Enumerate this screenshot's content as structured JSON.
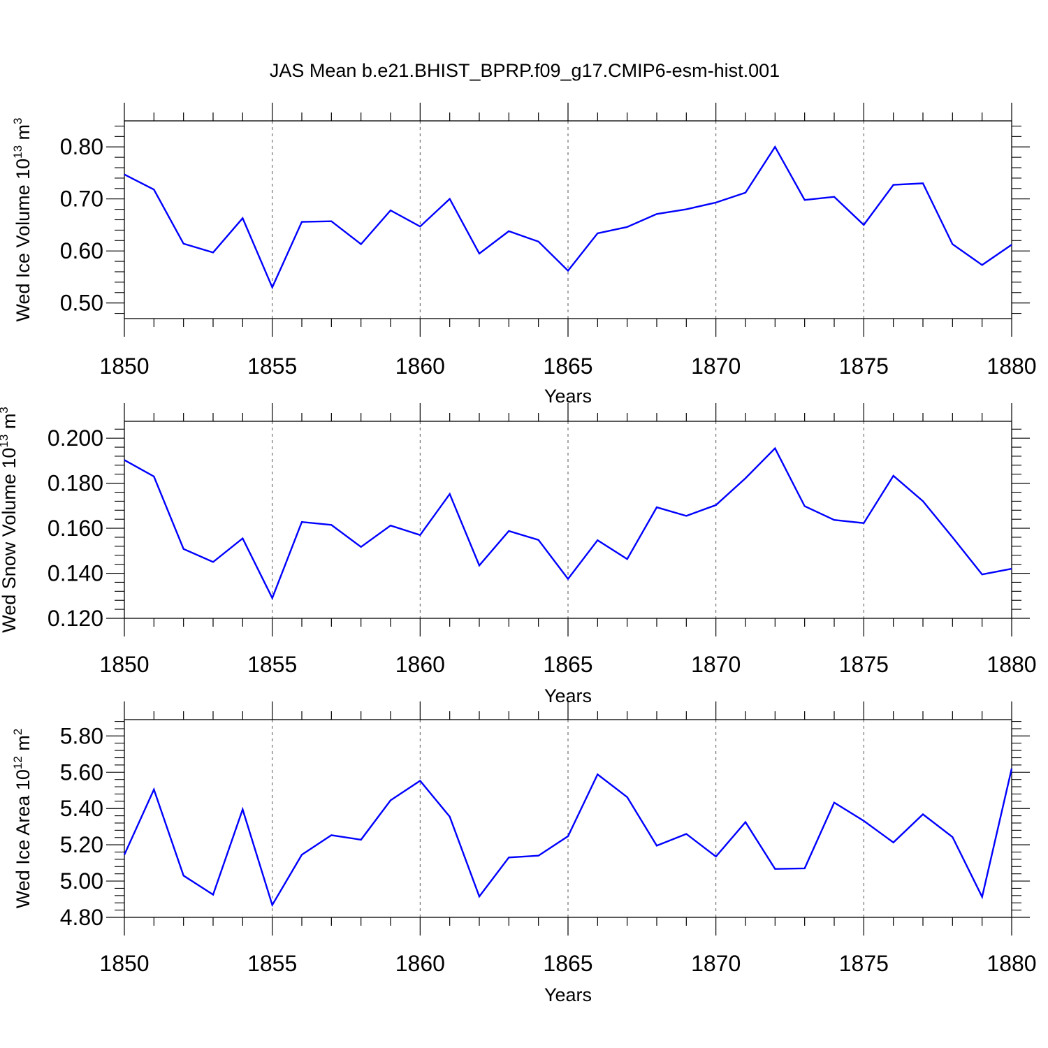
{
  "colors": {
    "series": "#0000ff",
    "axes": "#000000",
    "grid": "#555555",
    "background": "#ffffff"
  },
  "chart_data": [
    {
      "type": "line",
      "title": "JAS Mean b.e21.BHIST_BPRP.f09_g17.CMIP6-esm-hist.001",
      "xlabel": "Years",
      "ylabel_text": "Wed Ice Volume 10",
      "ylabel_exp": "13",
      "ylabel_unit": " m",
      "ylabel_unit_exp": "3",
      "xlim": [
        1850,
        1880
      ],
      "ylim": [
        0.47,
        0.85
      ],
      "x_ticks": [
        1850,
        1855,
        1860,
        1865,
        1870,
        1875,
        1880
      ],
      "x_tick_labels": [
        "1850",
        "1855",
        "1860",
        "1865",
        "1870",
        "1875",
        "1880"
      ],
      "y_ticks": [
        0.5,
        0.6,
        0.7,
        0.8
      ],
      "y_tick_labels": [
        "0.50",
        "0.60",
        "0.70",
        "0.80"
      ],
      "y_minor_step": 0.02,
      "x": [
        1850,
        1851,
        1852,
        1853,
        1854,
        1855,
        1856,
        1857,
        1858,
        1859,
        1860,
        1861,
        1862,
        1863,
        1864,
        1865,
        1866,
        1867,
        1868,
        1869,
        1870,
        1871,
        1872,
        1873,
        1874,
        1875,
        1876,
        1877,
        1878,
        1879,
        1880
      ],
      "values": [
        0.747,
        0.718,
        0.614,
        0.597,
        0.663,
        0.53,
        0.656,
        0.657,
        0.613,
        0.678,
        0.647,
        0.7,
        0.595,
        0.638,
        0.618,
        0.562,
        0.634,
        0.646,
        0.671,
        0.68,
        0.693,
        0.712,
        0.8,
        0.698,
        0.704,
        0.65,
        0.727,
        0.73,
        0.613,
        0.573,
        0.612
      ],
      "grid": "vertical dashed at major x ticks"
    },
    {
      "type": "line",
      "xlabel": "Years",
      "ylabel_text": "Wed Snow Volume 10",
      "ylabel_exp": "13",
      "ylabel_unit": " m",
      "ylabel_unit_exp": "3",
      "xlim": [
        1850,
        1880
      ],
      "ylim": [
        0.12,
        0.2075
      ],
      "x_ticks": [
        1850,
        1855,
        1860,
        1865,
        1870,
        1875,
        1880
      ],
      "x_tick_labels": [
        "1850",
        "1855",
        "1860",
        "1865",
        "1870",
        "1875",
        "1880"
      ],
      "y_ticks": [
        0.12,
        0.14,
        0.16,
        0.18,
        0.2
      ],
      "y_tick_labels": [
        "0.120",
        "0.140",
        "0.160",
        "0.180",
        "0.200"
      ],
      "y_minor_step": 0.004,
      "x": [
        1850,
        1851,
        1852,
        1853,
        1854,
        1855,
        1856,
        1857,
        1858,
        1859,
        1860,
        1861,
        1862,
        1863,
        1864,
        1865,
        1866,
        1867,
        1868,
        1869,
        1870,
        1871,
        1872,
        1873,
        1874,
        1875,
        1876,
        1877,
        1878,
        1879,
        1880
      ],
      "values": [
        0.1903,
        0.183,
        0.1508,
        0.145,
        0.1555,
        0.129,
        0.1628,
        0.1615,
        0.1517,
        0.1612,
        0.157,
        0.1752,
        0.1435,
        0.1588,
        0.1548,
        0.1375,
        0.1547,
        0.1463,
        0.1693,
        0.1655,
        0.1703,
        0.1822,
        0.1955,
        0.1698,
        0.1637,
        0.1623,
        0.1833,
        0.172,
        0.156,
        0.1395,
        0.142
      ],
      "grid": "vertical dashed at major x ticks"
    },
    {
      "type": "line",
      "xlabel": "Years",
      "ylabel_text": "Wed Ice Area 10",
      "ylabel_exp": "12",
      "ylabel_unit": " m",
      "ylabel_unit_exp": "2",
      "xlim": [
        1850,
        1880
      ],
      "ylim": [
        4.8,
        5.89
      ],
      "x_ticks": [
        1850,
        1855,
        1860,
        1865,
        1870,
        1875,
        1880
      ],
      "x_tick_labels": [
        "1850",
        "1855",
        "1860",
        "1865",
        "1870",
        "1875",
        "1880"
      ],
      "y_ticks": [
        4.8,
        5.0,
        5.2,
        5.4,
        5.6,
        5.8
      ],
      "y_tick_labels": [
        "4.80",
        "5.00",
        "5.20",
        "5.40",
        "5.60",
        "5.80"
      ],
      "y_minor_step": 0.04,
      "x": [
        1850,
        1851,
        1852,
        1853,
        1854,
        1855,
        1856,
        1857,
        1858,
        1859,
        1860,
        1861,
        1862,
        1863,
        1864,
        1865,
        1866,
        1867,
        1868,
        1869,
        1870,
        1871,
        1872,
        1873,
        1874,
        1875,
        1876,
        1877,
        1878,
        1879,
        1880
      ],
      "values": [
        5.145,
        5.505,
        5.03,
        4.925,
        5.395,
        4.868,
        5.145,
        5.253,
        5.228,
        5.445,
        5.553,
        5.355,
        4.915,
        5.13,
        5.14,
        5.247,
        5.588,
        5.463,
        5.195,
        5.26,
        5.135,
        5.325,
        5.067,
        5.07,
        5.433,
        5.332,
        5.213,
        5.368,
        5.243,
        4.913,
        5.62
      ],
      "grid": "vertical dashed at major x ticks"
    }
  ]
}
